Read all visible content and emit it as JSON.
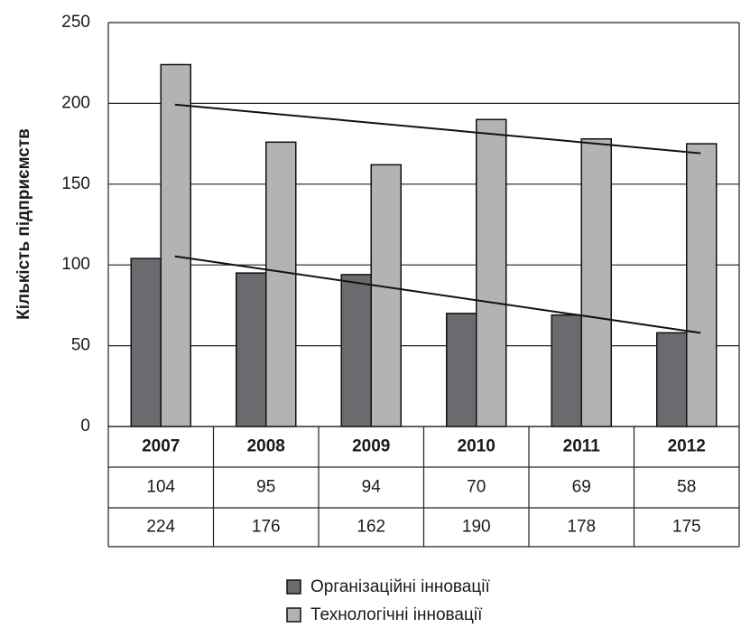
{
  "chart_data": {
    "type": "bar",
    "y_label": "Кількість підприємств",
    "categories": [
      "2007",
      "2008",
      "2009",
      "2010",
      "2011",
      "2012"
    ],
    "series": [
      {
        "name": "Організаційні інновації",
        "color": "#6b6b6f",
        "values": [
          104,
          95,
          94,
          70,
          69,
          58
        ]
      },
      {
        "name": "Технологічні інновації",
        "color": "#b3b3b3",
        "values": [
          224,
          176,
          162,
          190,
          178,
          175
        ]
      }
    ],
    "ylim": [
      0,
      250
    ],
    "yticks": [
      0,
      50,
      100,
      150,
      200,
      250
    ],
    "grid": true,
    "trendline": "linear",
    "data_table": true,
    "legend": "bottom"
  }
}
